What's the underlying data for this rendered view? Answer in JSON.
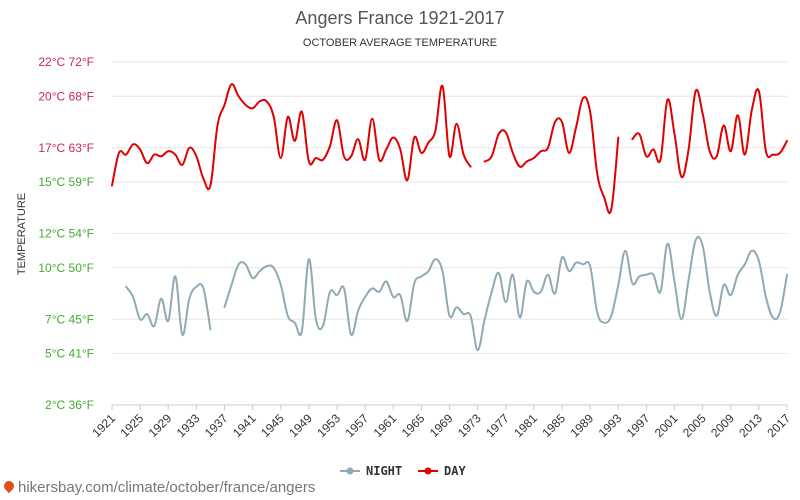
{
  "chart_data": {
    "type": "line",
    "title": "Angers France 1921-2017",
    "subtitle": "OCTOBER AVERAGE TEMPERATURE",
    "ylabel": "TEMPERATURE",
    "xlabel": "",
    "xlim": [
      1921,
      2017
    ],
    "ylim": [
      2,
      22
    ],
    "yticks": [
      {
        "value": 2,
        "label": "2°C 36°F"
      },
      {
        "value": 5,
        "label": "5°C 41°F"
      },
      {
        "value": 7,
        "label": "7°C 45°F"
      },
      {
        "value": 10,
        "label": "10°C 50°F"
      },
      {
        "value": 12,
        "label": "12°C 54°F"
      },
      {
        "value": 15,
        "label": "15°C 59°F"
      },
      {
        "value": 17,
        "label": "17°C 63°F"
      },
      {
        "value": 20,
        "label": "20°C 68°F"
      },
      {
        "value": 22,
        "label": "22°C 72°F"
      }
    ],
    "xticks": [
      1921,
      1925,
      1929,
      1933,
      1937,
      1941,
      1945,
      1949,
      1953,
      1957,
      1961,
      1965,
      1969,
      1973,
      1977,
      1981,
      1985,
      1989,
      1993,
      1997,
      2001,
      2005,
      2009,
      2013,
      2017
    ],
    "grid": true,
    "legend_position": "bottom-center",
    "series": [
      {
        "name": "NIGHT",
        "color": "#90aab5",
        "segments": [
          [
            [
              1923,
              8.9
            ],
            [
              1924,
              8.3
            ],
            [
              1925,
              7.0
            ],
            [
              1926,
              7.3
            ],
            [
              1927,
              6.6
            ],
            [
              1928,
              8.2
            ],
            [
              1929,
              6.9
            ],
            [
              1930,
              9.5
            ],
            [
              1931,
              6.1
            ],
            [
              1932,
              8.2
            ],
            [
              1933,
              8.9
            ],
            [
              1934,
              8.8
            ],
            [
              1935,
              6.4
            ]
          ],
          [
            [
              1937,
              7.7
            ],
            [
              1938,
              9.0
            ],
            [
              1939,
              10.2
            ],
            [
              1940,
              10.2
            ],
            [
              1941,
              9.4
            ],
            [
              1942,
              9.8
            ],
            [
              1943,
              10.1
            ],
            [
              1944,
              10.0
            ],
            [
              1945,
              9.0
            ],
            [
              1946,
              7.2
            ],
            [
              1947,
              6.8
            ],
            [
              1948,
              6.3
            ],
            [
              1949,
              10.5
            ],
            [
              1950,
              7.0
            ],
            [
              1951,
              6.6
            ],
            [
              1952,
              8.6
            ],
            [
              1953,
              8.4
            ],
            [
              1954,
              8.8
            ],
            [
              1955,
              6.1
            ],
            [
              1956,
              7.5
            ],
            [
              1957,
              8.3
            ],
            [
              1958,
              8.8
            ],
            [
              1959,
              8.6
            ],
            [
              1960,
              9.2
            ],
            [
              1961,
              8.3
            ],
            [
              1962,
              8.4
            ],
            [
              1963,
              6.9
            ],
            [
              1964,
              9.1
            ],
            [
              1965,
              9.5
            ],
            [
              1966,
              9.8
            ],
            [
              1967,
              10.5
            ],
            [
              1968,
              9.8
            ],
            [
              1969,
              7.2
            ],
            [
              1970,
              7.7
            ],
            [
              1971,
              7.3
            ],
            [
              1972,
              7.2
            ],
            [
              1973,
              5.2
            ],
            [
              1974,
              7.0
            ],
            [
              1975,
              8.6
            ],
            [
              1976,
              9.7
            ],
            [
              1977,
              8.0
            ],
            [
              1978,
              9.6
            ],
            [
              1979,
              7.1
            ],
            [
              1980,
              9.2
            ],
            [
              1981,
              8.6
            ],
            [
              1982,
              8.6
            ],
            [
              1983,
              9.6
            ],
            [
              1984,
              8.5
            ],
            [
              1985,
              10.6
            ],
            [
              1986,
              9.8
            ],
            [
              1987,
              10.3
            ],
            [
              1988,
              10.2
            ],
            [
              1989,
              10.1
            ],
            [
              1990,
              7.4
            ],
            [
              1991,
              6.8
            ],
            [
              1992,
              7.2
            ],
            [
              1993,
              9.0
            ],
            [
              1994,
              11.0
            ],
            [
              1995,
              9.1
            ],
            [
              1996,
              9.5
            ],
            [
              1997,
              9.6
            ],
            [
              1998,
              9.6
            ],
            [
              1999,
              8.6
            ],
            [
              2000,
              11.4
            ],
            [
              2001,
              9.2
            ],
            [
              2002,
              7.0
            ],
            [
              2003,
              9.3
            ],
            [
              2004,
              11.6
            ],
            [
              2005,
              11.3
            ],
            [
              2006,
              8.6
            ],
            [
              2007,
              7.2
            ],
            [
              2008,
              9.0
            ],
            [
              2009,
              8.4
            ],
            [
              2010,
              9.6
            ],
            [
              2011,
              10.2
            ],
            [
              2012,
              11.0
            ],
            [
              2013,
              10.4
            ],
            [
              2014,
              8.3
            ],
            [
              2015,
              7.1
            ],
            [
              2016,
              7.4
            ],
            [
              2017,
              9.6
            ]
          ]
        ]
      },
      {
        "name": "DAY",
        "color": "#e00000",
        "segments": [
          [
            [
              1921,
              14.8
            ],
            [
              1922,
              16.7
            ],
            [
              1923,
              16.6
            ],
            [
              1924,
              17.2
            ],
            [
              1925,
              16.9
            ],
            [
              1926,
              16.1
            ],
            [
              1927,
              16.6
            ],
            [
              1928,
              16.5
            ],
            [
              1929,
              16.8
            ],
            [
              1930,
              16.6
            ],
            [
              1931,
              16.0
            ],
            [
              1932,
              17.0
            ],
            [
              1933,
              16.5
            ],
            [
              1934,
              15.2
            ],
            [
              1935,
              14.8
            ],
            [
              1936,
              18.3
            ],
            [
              1937,
              19.5
            ],
            [
              1938,
              20.7
            ],
            [
              1939,
              20.0
            ],
            [
              1940,
              19.5
            ],
            [
              1941,
              19.3
            ],
            [
              1942,
              19.7
            ],
            [
              1943,
              19.7
            ],
            [
              1944,
              18.8
            ],
            [
              1945,
              16.4
            ],
            [
              1946,
              18.8
            ],
            [
              1947,
              17.4
            ],
            [
              1948,
              19.1
            ],
            [
              1949,
              16.2
            ],
            [
              1950,
              16.4
            ],
            [
              1951,
              16.3
            ],
            [
              1952,
              17.1
            ],
            [
              1953,
              18.6
            ],
            [
              1954,
              16.5
            ],
            [
              1955,
              16.5
            ],
            [
              1956,
              17.5
            ],
            [
              1957,
              16.3
            ],
            [
              1958,
              18.7
            ],
            [
              1959,
              16.3
            ],
            [
              1960,
              16.9
            ],
            [
              1961,
              17.6
            ],
            [
              1962,
              16.9
            ],
            [
              1963,
              15.1
            ],
            [
              1964,
              17.6
            ],
            [
              1965,
              16.7
            ],
            [
              1966,
              17.3
            ],
            [
              1967,
              18.0
            ],
            [
              1968,
              20.6
            ],
            [
              1969,
              16.5
            ],
            [
              1970,
              18.4
            ],
            [
              1971,
              16.6
            ],
            [
              1972,
              15.9
            ]
          ],
          [
            [
              1974,
              16.2
            ],
            [
              1975,
              16.5
            ],
            [
              1976,
              17.8
            ],
            [
              1977,
              17.9
            ],
            [
              1978,
              16.7
            ],
            [
              1979,
              15.9
            ],
            [
              1980,
              16.2
            ],
            [
              1981,
              16.4
            ],
            [
              1982,
              16.8
            ],
            [
              1983,
              17.0
            ],
            [
              1984,
              18.5
            ],
            [
              1985,
              18.5
            ],
            [
              1986,
              16.7
            ],
            [
              1987,
              18.2
            ],
            [
              1988,
              19.9
            ],
            [
              1989,
              19.1
            ],
            [
              1990,
              15.5
            ],
            [
              1991,
              14.1
            ],
            [
              1992,
              13.4
            ],
            [
              1993,
              17.6
            ]
          ],
          [
            [
              1995,
              17.5
            ],
            [
              1996,
              17.8
            ],
            [
              1997,
              16.5
            ],
            [
              1998,
              16.9
            ],
            [
              1999,
              16.3
            ],
            [
              2000,
              19.8
            ],
            [
              2001,
              17.8
            ],
            [
              2002,
              15.3
            ],
            [
              2003,
              16.9
            ],
            [
              2004,
              20.3
            ],
            [
              2005,
              19.0
            ],
            [
              2006,
              16.8
            ],
            [
              2007,
              16.5
            ],
            [
              2008,
              18.3
            ],
            [
              2009,
              16.8
            ],
            [
              2010,
              18.9
            ],
            [
              2011,
              16.6
            ],
            [
              2012,
              19.2
            ],
            [
              2013,
              20.3
            ],
            [
              2014,
              16.8
            ],
            [
              2015,
              16.6
            ],
            [
              2016,
              16.7
            ],
            [
              2017,
              17.4
            ]
          ]
        ]
      }
    ]
  },
  "source": {
    "text": "hikersbay.com/climate/october/france/angers",
    "icon": "map-pin-icon"
  },
  "colors": {
    "ytick_upper": "#cc2266",
    "ytick_lower": "#44aa33",
    "grid": "#e6e6e6"
  }
}
